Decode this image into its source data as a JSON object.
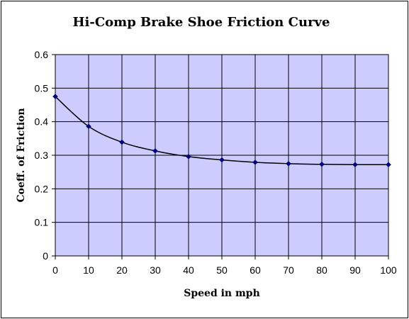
{
  "chart_data": {
    "type": "line",
    "title": "Hi-Comp Brake Shoe Friction Curve",
    "xlabel": "Speed in mph",
    "ylabel": "Coeff. of Friction",
    "x": [
      0,
      10,
      20,
      30,
      40,
      50,
      60,
      70,
      80,
      90,
      100
    ],
    "series": [
      {
        "values": [
          0.475,
          0.386,
          0.339,
          0.313,
          0.296,
          0.286,
          0.279,
          0.275,
          0.273,
          0.272,
          0.272
        ]
      }
    ],
    "xlim": [
      0,
      100
    ],
    "ylim": [
      0,
      0.6
    ],
    "xticks": [
      "0",
      "10",
      "20",
      "30",
      "40",
      "50",
      "60",
      "70",
      "80",
      "90",
      "100"
    ],
    "yticks": [
      "0",
      "0.1",
      "0.2",
      "0.3",
      "0.4",
      "0.5",
      "0.6"
    ],
    "grid": true,
    "legend": "none",
    "colors": {
      "plot_background": "#ccccff",
      "grid": "#000000",
      "line": "#000000",
      "marker": "#000080"
    }
  }
}
